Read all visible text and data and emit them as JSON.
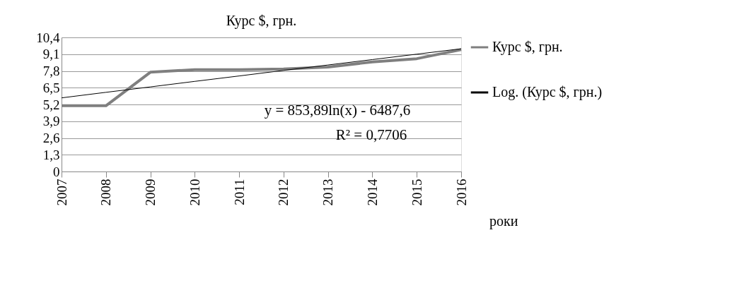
{
  "chart_data": {
    "type": "line",
    "title": "Курс $, грн.",
    "xlabel": "роки",
    "categories": [
      "2007",
      "2008",
      "2009",
      "2010",
      "2011",
      "2012",
      "2013",
      "2014",
      "2015",
      "2016"
    ],
    "series": [
      {
        "name": "Курс $, грн.",
        "color": "#7f7f7f",
        "values": [
          5.1,
          5.1,
          7.7,
          7.9,
          7.9,
          7.95,
          8.1,
          8.5,
          8.75,
          9.45
        ]
      },
      {
        "name": "Log. (Курс $, грн.)",
        "color": "#000000",
        "values": [
          5.71,
          6.14,
          6.56,
          6.99,
          7.41,
          7.84,
          8.26,
          8.68,
          9.1,
          9.52
        ]
      }
    ],
    "ylim": [
      0,
      10.4
    ],
    "yticks": [
      0,
      {
        "value": 1.3,
        "label": "1,3"
      },
      {
        "value": 2.6,
        "label": "2,6"
      },
      {
        "value": 3.9,
        "label": "3,9"
      },
      {
        "value": 5.2,
        "label": "5,2"
      },
      {
        "value": 6.5,
        "label": "6,5"
      },
      {
        "value": 7.8,
        "label": "7,8"
      },
      {
        "value": 9.1,
        "label": "9,1"
      },
      {
        "value": 10.4,
        "label": "10,4"
      }
    ],
    "grid": "y",
    "legend": "right",
    "marker": "none",
    "line_style": "solid",
    "annotations": [
      "y = 853,89ln(x) - 6487,6",
      "R² = 0,7706"
    ]
  }
}
